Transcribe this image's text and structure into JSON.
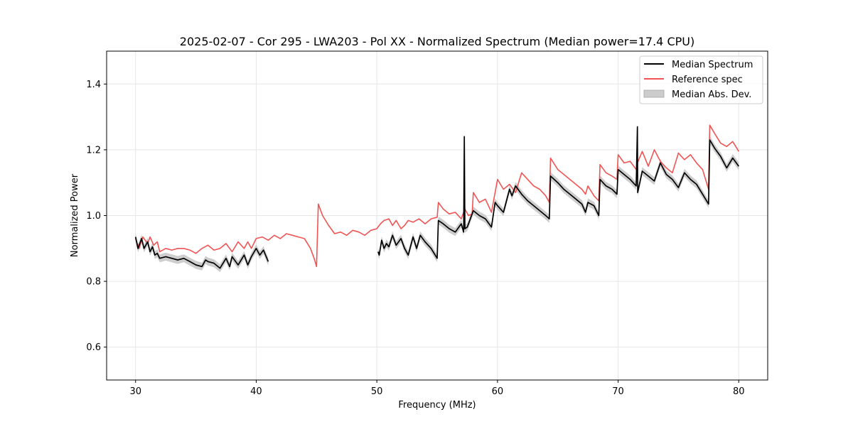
{
  "chart_data": {
    "type": "line",
    "title": "2025-02-07 - Cor 295 - LWA203 - Pol XX - Normalized Spectrum (Median power=17.4 CPU)",
    "xlabel": "Frequency (MHz)",
    "ylabel": "Normalized Power",
    "xlim": [
      27.6,
      82.4
    ],
    "ylim": [
      0.5,
      1.5
    ],
    "xticks": [
      30,
      40,
      50,
      60,
      70,
      80
    ],
    "yticks": [
      0.6,
      0.8,
      1.0,
      1.2,
      1.4
    ],
    "grid": true,
    "legend_position": "top-right",
    "legend": [
      "Median Spectrum",
      "Reference spec",
      "Median Abs. Dev."
    ],
    "colors": {
      "median": "#000000",
      "reference": "#f05454",
      "mad_band": "#b0b0b0",
      "grid": "#e6e6e6"
    },
    "series": [
      {
        "name": "Reference spec",
        "x": [
          30.0,
          30.3,
          30.6,
          31.0,
          31.2,
          31.5,
          31.8,
          32.0,
          32.5,
          33.0,
          33.5,
          34.0,
          34.5,
          35.0,
          35.5,
          36.0,
          36.5,
          37.0,
          37.5,
          38.0,
          38.5,
          39.0,
          39.3,
          39.6,
          40.0,
          40.5,
          41.0,
          41.5,
          42.0,
          42.5,
          43.0,
          43.5,
          44.0,
          44.5,
          44.8,
          45.0,
          45.15,
          45.5,
          46.0,
          46.5,
          47.0,
          47.5,
          48.0,
          48.5,
          49.0,
          49.5,
          50.0,
          50.3,
          50.6,
          51.0,
          51.3,
          51.6,
          52.0,
          52.3,
          52.6,
          53.0,
          53.5,
          54.0,
          54.5,
          55.0,
          55.1,
          55.5,
          56.0,
          56.5,
          57.0,
          57.3,
          57.6,
          57.9,
          58.0,
          58.5,
          59.0,
          59.5,
          60.0,
          60.5,
          61.0,
          61.5,
          62.0,
          62.5,
          63.0,
          63.5,
          64.0,
          64.3,
          64.4,
          65.0,
          65.5,
          66.0,
          66.5,
          67.0,
          67.3,
          67.5,
          68.0,
          68.4,
          68.5,
          69.0,
          69.5,
          69.9,
          70.0,
          70.5,
          71.0,
          71.5,
          71.6,
          72.0,
          72.5,
          73.0,
          73.5,
          74.0,
          74.5,
          75.0,
          75.5,
          76.0,
          76.5,
          77.0,
          77.5,
          77.6,
          78.0,
          78.5,
          79.0,
          79.5,
          80.0
        ],
        "y": [
          0.93,
          0.9,
          0.935,
          0.915,
          0.935,
          0.91,
          0.92,
          0.89,
          0.9,
          0.895,
          0.9,
          0.9,
          0.895,
          0.885,
          0.9,
          0.91,
          0.895,
          0.9,
          0.915,
          0.89,
          0.92,
          0.9,
          0.92,
          0.9,
          0.93,
          0.935,
          0.925,
          0.94,
          0.93,
          0.945,
          0.94,
          0.935,
          0.93,
          0.9,
          0.87,
          0.845,
          1.035,
          1.0,
          0.97,
          0.945,
          0.95,
          0.94,
          0.955,
          0.95,
          0.94,
          0.955,
          0.96,
          0.975,
          0.985,
          0.99,
          0.97,
          0.985,
          0.96,
          0.97,
          0.985,
          0.98,
          0.99,
          0.975,
          0.99,
          0.995,
          1.04,
          1.02,
          1.005,
          1.01,
          0.99,
          1.02,
          1.0,
          1.005,
          1.07,
          1.04,
          1.05,
          1.01,
          1.11,
          1.08,
          1.095,
          1.07,
          1.13,
          1.11,
          1.09,
          1.08,
          1.06,
          1.04,
          1.175,
          1.14,
          1.125,
          1.11,
          1.095,
          1.08,
          1.065,
          1.09,
          1.06,
          1.045,
          1.155,
          1.13,
          1.12,
          1.11,
          1.185,
          1.16,
          1.165,
          1.14,
          1.16,
          1.195,
          1.15,
          1.2,
          1.165,
          1.145,
          1.13,
          1.19,
          1.17,
          1.185,
          1.16,
          1.14,
          1.08,
          1.275,
          1.25,
          1.22,
          1.21,
          1.225,
          1.195
        ]
      },
      {
        "name": "Median Spectrum",
        "segments": [
          {
            "x": [
              30.0,
              30.2,
              30.5,
              30.7,
              31.0,
              31.2,
              31.4,
              31.6,
              31.8,
              32.0,
              32.5,
              33.0,
              33.5,
              34.0,
              34.5,
              35.0,
              35.5,
              35.8,
              36.0,
              36.5,
              37.0,
              37.5,
              37.8,
              38.0,
              38.5,
              39.0,
              39.3,
              39.6,
              40.0,
              40.3,
              40.6,
              41.0
            ],
            "y": [
              0.935,
              0.9,
              0.93,
              0.9,
              0.92,
              0.89,
              0.905,
              0.88,
              0.885,
              0.87,
              0.875,
              0.87,
              0.865,
              0.87,
              0.86,
              0.85,
              0.845,
              0.865,
              0.86,
              0.855,
              0.84,
              0.87,
              0.845,
              0.875,
              0.85,
              0.88,
              0.85,
              0.875,
              0.9,
              0.88,
              0.895,
              0.86
            ]
          },
          {
            "x": [
              50.1,
              50.2,
              50.4,
              50.6,
              50.8,
              51.0,
              51.3,
              51.6,
              52.0,
              52.3,
              52.6,
              53.0,
              53.3,
              53.6,
              54.0,
              54.5,
              55.0,
              55.1,
              55.5,
              56.0,
              56.5,
              57.0,
              57.2,
              57.25,
              57.3,
              57.5,
              58.0,
              58.5,
              59.0,
              59.5,
              59.8,
              60.0,
              60.5,
              61.0,
              61.2,
              61.5,
              62.0,
              62.5,
              63.0,
              63.5,
              64.0,
              64.3,
              64.4,
              65.0,
              65.5,
              66.0,
              66.5,
              67.0,
              67.3,
              67.5,
              68.0,
              68.4,
              68.5,
              69.0,
              69.5,
              69.9,
              70.0,
              70.5,
              71.0,
              71.5,
              71.6,
              71.62,
              72.0,
              72.5,
              73.0,
              73.5,
              74.0,
              74.5,
              75.0,
              75.5,
              76.0,
              76.5,
              77.0,
              77.5,
              77.6,
              78.0,
              78.5,
              79.0,
              79.5,
              80.0
            ],
            "y": [
              0.89,
              0.88,
              0.925,
              0.9,
              0.915,
              0.905,
              0.94,
              0.91,
              0.93,
              0.9,
              0.88,
              0.935,
              0.9,
              0.94,
              0.92,
              0.9,
              0.87,
              0.985,
              0.975,
              0.96,
              0.95,
              0.975,
              0.95,
              1.24,
              0.96,
              0.965,
              1.015,
              1.0,
              0.99,
              0.965,
              1.04,
              1.03,
              1.01,
              1.08,
              1.06,
              1.09,
              1.065,
              1.045,
              1.03,
              1.015,
              1.0,
              0.99,
              1.12,
              1.1,
              1.08,
              1.065,
              1.05,
              1.035,
              1.01,
              1.04,
              1.03,
              1.0,
              1.11,
              1.09,
              1.08,
              1.065,
              1.14,
              1.125,
              1.11,
              1.09,
              1.27,
              1.07,
              1.135,
              1.12,
              1.105,
              1.16,
              1.125,
              1.11,
              1.085,
              1.13,
              1.11,
              1.095,
              1.065,
              1.035,
              1.23,
              1.205,
              1.18,
              1.145,
              1.175,
              1.15
            ]
          }
        ]
      }
    ],
    "mad_band_width": 0.012
  }
}
